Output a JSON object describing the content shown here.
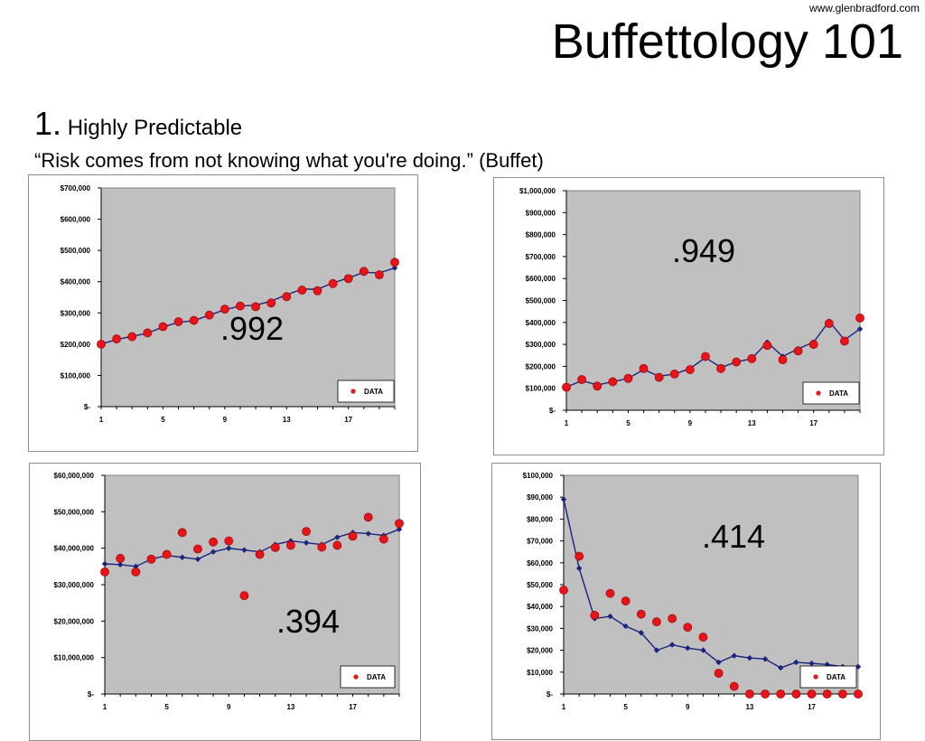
{
  "header": {
    "site": "www.glenbradford.com",
    "title": "Buffettology 101",
    "point_number": "1.",
    "point_title": "Highly Predictable",
    "quote": "“Risk comes from not knowing what you're doing.” (Buffet)"
  },
  "chart_data": [
    {
      "type": "scatter",
      "title": "",
      "annotation": ".992",
      "legend": "DATA",
      "legend_position": "bottom-right",
      "ylim": [
        0,
        700000
      ],
      "y_ticks": [
        0,
        100000,
        200000,
        300000,
        400000,
        500000,
        600000,
        700000
      ],
      "y_tick_labels": [
        "$-",
        "$100,000",
        "$200,000",
        "$300,000",
        "$400,000",
        "$500,000",
        "$600,000",
        "$700,000"
      ],
      "x_ticks": [
        1,
        5,
        9,
        13,
        17
      ],
      "x": [
        1,
        2,
        3,
        4,
        5,
        6,
        7,
        8,
        9,
        10,
        11,
        12,
        13,
        14,
        15,
        16,
        17,
        18,
        19,
        20
      ],
      "data": [
        200000,
        217000,
        224000,
        236000,
        256000,
        272000,
        276000,
        293000,
        312000,
        322000,
        320000,
        332000,
        352000,
        373000,
        371000,
        394000,
        410000,
        433000,
        422000,
        462000
      ],
      "trend": [
        200000,
        215000,
        225000,
        235000,
        255000,
        270000,
        275000,
        293000,
        310000,
        322000,
        325000,
        338000,
        358000,
        376000,
        376000,
        396000,
        412000,
        430000,
        428000,
        444000
      ],
      "colors": {
        "data": "#e8141a",
        "trend": "#1a237e",
        "plot_bg": "#c0c0c0"
      }
    },
    {
      "type": "scatter",
      "title": "",
      "annotation": ".949",
      "legend": "DATA",
      "legend_position": "bottom-right",
      "ylim": [
        0,
        1000000
      ],
      "y_ticks": [
        0,
        100000,
        200000,
        300000,
        400000,
        500000,
        600000,
        700000,
        800000,
        900000,
        1000000
      ],
      "y_tick_labels": [
        "$-",
        "$100,000",
        "$200,000",
        "$300,000",
        "$400,000",
        "$500,000",
        "$600,000",
        "$700,000",
        "$800,000",
        "$900,000",
        "$1,000,000"
      ],
      "x_ticks": [
        1,
        5,
        9,
        13,
        17
      ],
      "x": [
        1,
        2,
        3,
        4,
        5,
        6,
        7,
        8,
        9,
        10,
        11,
        12,
        13,
        14,
        15,
        16,
        17,
        18,
        19,
        20
      ],
      "data": [
        105000,
        140000,
        110000,
        130000,
        145000,
        190000,
        150000,
        165000,
        185000,
        245000,
        190000,
        220000,
        235000,
        295000,
        230000,
        270000,
        300000,
        395000,
        315000,
        420000
      ],
      "trend": [
        105000,
        135000,
        115000,
        130000,
        145000,
        185000,
        155000,
        165000,
        190000,
        240000,
        195000,
        220000,
        235000,
        310000,
        245000,
        280000,
        310000,
        405000,
        320000,
        370000
      ],
      "colors": {
        "data": "#e8141a",
        "trend": "#1a237e",
        "plot_bg": "#c0c0c0"
      }
    },
    {
      "type": "scatter",
      "title": "",
      "annotation": ".394",
      "legend": "DATA",
      "legend_position": "bottom-right",
      "ylim": [
        0,
        60000000
      ],
      "y_ticks": [
        0,
        10000000,
        20000000,
        30000000,
        40000000,
        50000000,
        60000000
      ],
      "y_tick_labels": [
        "$-",
        "$10,000,000",
        "$20,000,000",
        "$30,000,000",
        "$40,000,000",
        "$50,000,000",
        "$60,000,000"
      ],
      "x_ticks": [
        1,
        5,
        9,
        13,
        17
      ],
      "x": [
        1,
        2,
        3,
        4,
        5,
        6,
        7,
        8,
        9,
        10,
        11,
        12,
        13,
        14,
        15,
        16,
        17,
        18,
        19,
        20
      ],
      "data": [
        33500000,
        37200000,
        33500000,
        37000000,
        38300000,
        44300000,
        39800000,
        41700000,
        42000000,
        27000000,
        38300000,
        40200000,
        40800000,
        44600000,
        40300000,
        40800000,
        43300000,
        48500000,
        42500000,
        46800000
      ],
      "trend": [
        35700000,
        35500000,
        35000000,
        37000000,
        38000000,
        37500000,
        37000000,
        39000000,
        40000000,
        39500000,
        39000000,
        41000000,
        42000000,
        41500000,
        41000000,
        43000000,
        44300000,
        44000000,
        43500000,
        45200000
      ],
      "colors": {
        "data": "#e8141a",
        "trend": "#1a237e",
        "plot_bg": "#c0c0c0"
      }
    },
    {
      "type": "scatter",
      "title": "",
      "annotation": ".414",
      "legend": "DATA",
      "legend_position": "bottom-right",
      "ylim": [
        0,
        100000
      ],
      "y_ticks": [
        0,
        10000,
        20000,
        30000,
        40000,
        50000,
        60000,
        70000,
        80000,
        90000,
        100000
      ],
      "y_tick_labels": [
        "$-",
        "$10,000",
        "$20,000",
        "$30,000",
        "$40,000",
        "$50,000",
        "$60,000",
        "$70,000",
        "$80,000",
        "$90,000",
        "$100,000"
      ],
      "x_ticks": [
        1,
        5,
        9,
        13,
        17
      ],
      "x": [
        1,
        2,
        3,
        4,
        5,
        6,
        7,
        8,
        9,
        10,
        11,
        12,
        13,
        14,
        15,
        16,
        17,
        18,
        19,
        20
      ],
      "data": [
        47500,
        63000,
        36000,
        46000,
        42500,
        36500,
        33000,
        34500,
        30500,
        26000,
        9500,
        3500,
        0,
        0,
        0,
        0,
        0,
        0,
        0,
        0
      ],
      "trend": [
        89000,
        57500,
        34500,
        35500,
        31000,
        28000,
        20000,
        22500,
        21000,
        20000,
        14500,
        17500,
        16500,
        16000,
        12000,
        14500,
        14000,
        13500,
        12500,
        12500
      ],
      "colors": {
        "data": "#e8141a",
        "trend": "#1a237e",
        "plot_bg": "#c0c0c0"
      }
    }
  ]
}
